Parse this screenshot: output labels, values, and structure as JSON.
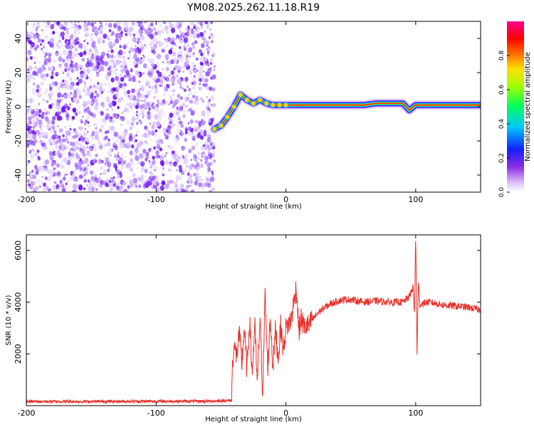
{
  "figure": {
    "title": "YM08.2025.262.11.18.R19"
  },
  "colors": {
    "signal": "#e8302a",
    "noise": "#7a2cf0",
    "background": "#ffffff"
  },
  "chart_data": [
    {
      "type": "heatmap",
      "title": "YM08.2025.262.11.18.R19",
      "xlabel": "Height of straight line (km)",
      "ylabel": "Frequency (Hz)",
      "xlim": [
        -200,
        150
      ],
      "ylim": [
        -50,
        50
      ],
      "xticks": [
        -200,
        -100,
        0,
        100
      ],
      "yticks": [
        -40,
        -20,
        0,
        20,
        40
      ],
      "noise_region_x": [
        -200,
        -55
      ],
      "ridge": {
        "x": [
          -55,
          -50,
          -45,
          -40,
          -35,
          -30,
          -25,
          -20,
          -15,
          -10,
          -5,
          0,
          10,
          20,
          40,
          60,
          70,
          80,
          90,
          95,
          100,
          110,
          120,
          130,
          140,
          150
        ],
        "freq": [
          -13,
          -11,
          -6,
          0,
          7,
          4,
          2,
          4,
          2,
          1,
          1,
          1,
          1,
          1,
          1,
          1,
          2,
          2,
          2,
          -2,
          1,
          1,
          1,
          1,
          1,
          1
        ]
      },
      "colorbar": {
        "label": "Normalized spectral amplitude",
        "range": [
          0,
          1
        ],
        "ticks": [
          "0.0",
          "0.2",
          "0.4",
          "0.6",
          "0.8"
        ]
      }
    },
    {
      "type": "line",
      "xlabel": "Height of straight line (km)",
      "ylabel": "SNR (10 * v/v)",
      "xlim": [
        -200,
        150
      ],
      "ylim": [
        0,
        6600
      ],
      "xticks": [
        -200,
        -100,
        0,
        100
      ],
      "yticks": [
        2000,
        4000,
        6000
      ],
      "series": [
        {
          "name": "SNR",
          "color": "#e8302a",
          "x": [
            -200,
            -150,
            -100,
            -60,
            -42,
            -41,
            -40,
            -38,
            -36,
            -34,
            -32,
            -30,
            -28,
            -26,
            -24,
            -22,
            -20,
            -18,
            -16,
            -14,
            -12,
            -10,
            -8,
            -6,
            -4,
            -2,
            0,
            4,
            8,
            10,
            12,
            14,
            16,
            18,
            20,
            25,
            30,
            35,
            40,
            45,
            50,
            60,
            70,
            80,
            90,
            95,
            98,
            99,
            100,
            101,
            102,
            103,
            105,
            110,
            120,
            130,
            140,
            150
          ],
          "values": [
            160,
            160,
            170,
            170,
            200,
            1800,
            2300,
            1900,
            2800,
            1600,
            3000,
            1300,
            3400,
            1200,
            3100,
            800,
            3500,
            500,
            4300,
            1400,
            3400,
            1500,
            3000,
            1800,
            3100,
            2100,
            3000,
            3300,
            4600,
            2900,
            3400,
            3000,
            3100,
            3100,
            3300,
            3600,
            3800,
            3950,
            4050,
            4100,
            4100,
            4000,
            4050,
            4000,
            4000,
            4200,
            4600,
            3500,
            6600,
            2000,
            4800,
            3900,
            3950,
            4000,
            3900,
            3850,
            3800,
            3700
          ]
        }
      ]
    }
  ]
}
